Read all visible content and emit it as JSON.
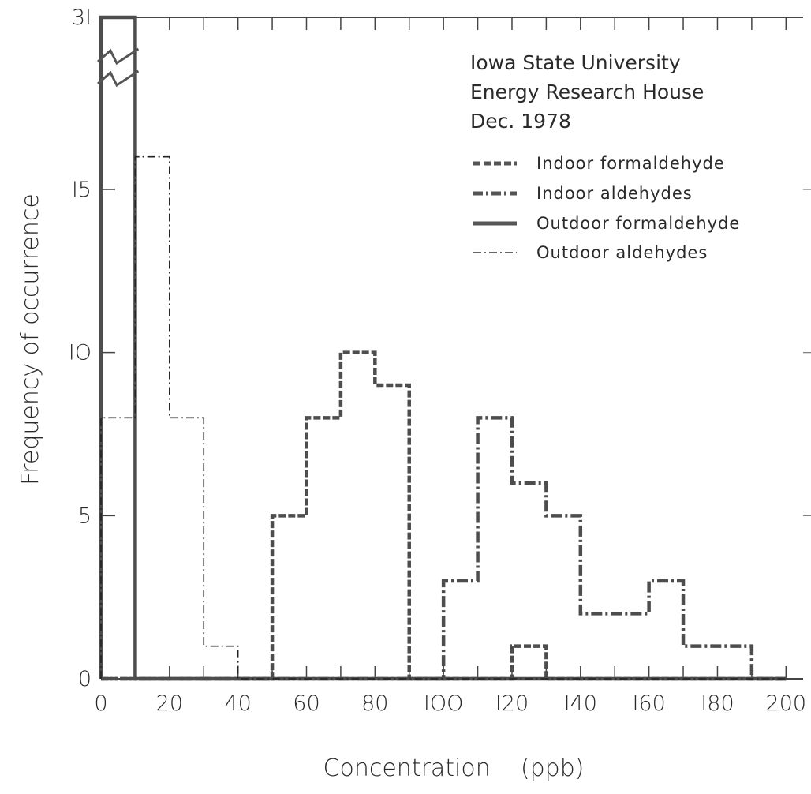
{
  "chart_data": {
    "type": "line",
    "title": "",
    "annotation": [
      "Iowa State University",
      "Energy Research House",
      "Dec. 1978"
    ],
    "xlabel": "Concentration    (ppb)",
    "ylabel": "Frequency of occurrence",
    "xlim": [
      0,
      205
    ],
    "ylim": [
      0,
      31
    ],
    "x_ticks": [
      0,
      20,
      40,
      60,
      80,
      100,
      120,
      140,
      160,
      180,
      200
    ],
    "y_ticks": [
      0,
      5,
      10,
      15,
      31
    ],
    "y_tick_labels": [
      "0",
      "5",
      "IO",
      "I5",
      "3I"
    ],
    "x_tick_labels": [
      "0",
      "20",
      "40",
      "60",
      "80",
      "IOO",
      "I20",
      "I40",
      "I60",
      "I80",
      "200"
    ],
    "bin_width": 10,
    "y_axis_break": true,
    "grid": false,
    "legend_position": "top-right",
    "series": [
      {
        "name": "Indoor formaldehyde",
        "style": "dashed-heavy",
        "x": [
          0,
          10,
          20,
          30,
          40,
          50,
          60,
          70,
          80,
          90,
          100,
          110,
          120,
          130,
          140,
          150,
          160,
          170,
          180,
          190
        ],
        "values": [
          0,
          0,
          0,
          0,
          0,
          5,
          8,
          10,
          9,
          0,
          0,
          0,
          1,
          0,
          0,
          0,
          0,
          0,
          0,
          0
        ]
      },
      {
        "name": "Indoor aldehydes",
        "style": "dash-dot-heavy",
        "x": [
          0,
          10,
          20,
          30,
          40,
          50,
          60,
          70,
          80,
          90,
          100,
          110,
          120,
          130,
          140,
          150,
          160,
          170,
          180,
          190
        ],
        "values": [
          0,
          0,
          0,
          0,
          0,
          0,
          0,
          0,
          0,
          0,
          3,
          8,
          6,
          5,
          2,
          2,
          3,
          1,
          1,
          0
        ]
      },
      {
        "name": "Outdoor formaldehyde",
        "style": "solid-heavy",
        "x": [
          0,
          10,
          20,
          30,
          40,
          50,
          60,
          70,
          80,
          90,
          100,
          110,
          120,
          130,
          140,
          150,
          160,
          170,
          180,
          190
        ],
        "values": [
          31,
          0,
          0,
          0,
          0,
          0,
          0,
          0,
          0,
          0,
          0,
          0,
          0,
          0,
          0,
          0,
          0,
          0,
          0,
          0
        ]
      },
      {
        "name": "Outdoor aldehydes",
        "style": "dash-dot-thin",
        "x": [
          0,
          10,
          20,
          30,
          40,
          50,
          60,
          70,
          80,
          90,
          100,
          110,
          120,
          130,
          140,
          150,
          160,
          170,
          180,
          190
        ],
        "values": [
          8,
          16,
          8,
          1,
          0,
          0,
          0,
          0,
          0,
          0,
          0,
          0,
          0,
          0,
          0,
          0,
          0,
          0,
          0,
          0
        ]
      }
    ]
  }
}
